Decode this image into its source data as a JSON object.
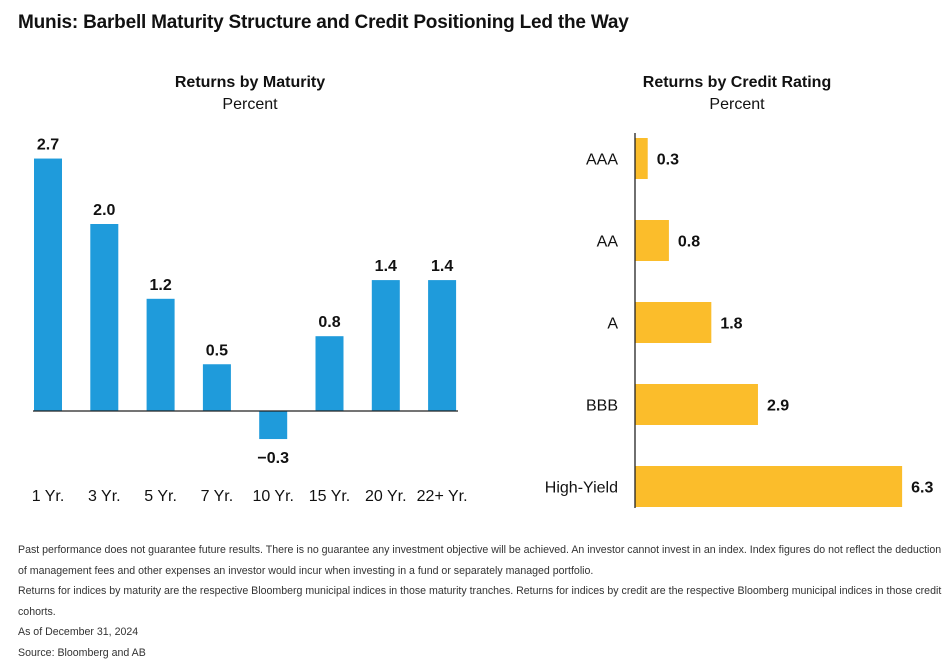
{
  "title": "Munis: Barbell Maturity Structure and Credit Positioning Led the Way",
  "chart_data": [
    {
      "type": "bar",
      "title": "Returns by Maturity",
      "subtitle": "Percent",
      "categories": [
        "1 Yr.",
        "3 Yr.",
        "5 Yr.",
        "7 Yr.",
        "10 Yr.",
        "15 Yr.",
        "20 Yr.",
        "22+ Yr."
      ],
      "values": [
        2.7,
        2.0,
        1.2,
        0.5,
        -0.3,
        0.8,
        1.4,
        1.4
      ],
      "value_labels": [
        "2.7",
        "2.0",
        "1.2",
        "0.5",
        "−0.3",
        "0.8",
        "1.4",
        "1.4"
      ],
      "color": "#1f9bdb",
      "orientation": "vertical",
      "grid": false
    },
    {
      "type": "bar",
      "title": "Returns by Credit Rating",
      "subtitle": "Percent",
      "categories": [
        "AAA",
        "AA",
        "A",
        "BBB",
        "High-Yield"
      ],
      "values": [
        0.3,
        0.8,
        1.8,
        2.9,
        6.3
      ],
      "value_labels": [
        "0.3",
        "0.8",
        "1.8",
        "2.9",
        "6.3"
      ],
      "color": "#fbbd2b",
      "orientation": "horizontal",
      "grid": false
    }
  ],
  "footnotes": {
    "disclaimer": "Past performance does not guarantee future results. There is no guarantee any investment objective will be achieved. An investor cannot invest in an index. Index figures do not reflect the deduction of management fees and other expenses an investor would incur when investing in a fund or separately managed portfolio.",
    "indices": "Returns for indices by maturity are the respective Bloomberg municipal indices in those maturity tranches. Returns for indices by credit are the respective Bloomberg municipal indices in those credit cohorts.",
    "as_of": "As of December 31, 2024",
    "source": "Source: Bloomberg and AB"
  }
}
